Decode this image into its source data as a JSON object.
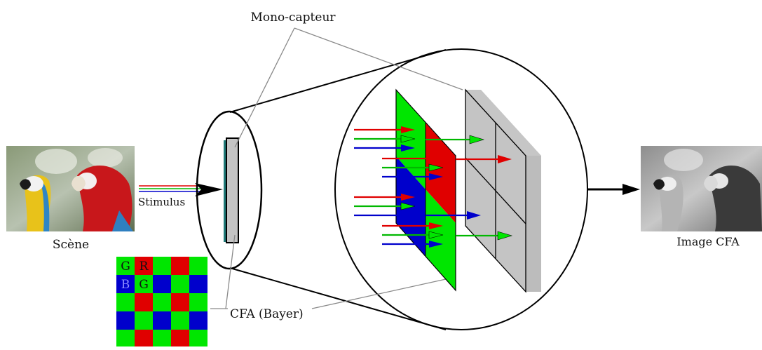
{
  "labels": {
    "sensor": "Mono-capteur",
    "scene": "Scène",
    "stimulus": "Stimulus",
    "cfa_pattern": "CFA (Bayer)",
    "cfa_image": "Image CFA"
  },
  "bayer": {
    "grid": [
      [
        "G",
        "R",
        "G",
        "R",
        "G"
      ],
      [
        "B",
        "G",
        "B",
        "G",
        "B"
      ],
      [
        "G",
        "R",
        "G",
        "R",
        "G"
      ],
      [
        "B",
        "G",
        "B",
        "G",
        "B"
      ],
      [
        "G",
        "R",
        "G",
        "R",
        "G"
      ]
    ],
    "letters": [
      {
        "text": "G",
        "row": 0,
        "col": 0
      },
      {
        "text": "R",
        "row": 0,
        "col": 1
      },
      {
        "text": "B",
        "row": 1,
        "col": 0
      },
      {
        "text": "G",
        "row": 1,
        "col": 1
      }
    ]
  },
  "colors": {
    "red": "#e00000",
    "green": "#00e600",
    "blue": "#0000cc",
    "sensor_gray": "#c4c4c4",
    "teal": "#1f7a78"
  }
}
